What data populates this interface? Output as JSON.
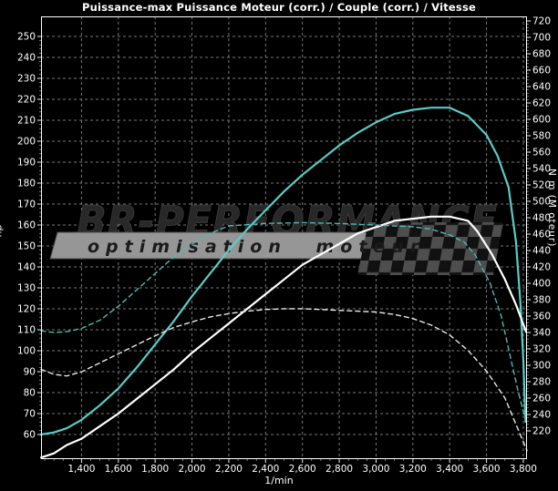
{
  "title": "Puissance-max Puissance Moteur (corr.) / Couple (corr.) / Vitesse",
  "watermark": {
    "brand": "BR-Performance",
    "tagline": "optimisation moteur"
  },
  "colors": {
    "background": "#000000",
    "tuned_curve": "#5accc5",
    "original_curve": "#ffffff",
    "grid": "#787878",
    "frame": "#ffffff",
    "banner_fill": "#969696",
    "banner_text": "#1b1b1b",
    "brand_fill": "#282828",
    "checker_dark": "#111111",
    "checker_light": "#4e4e4e"
  },
  "chart_data": {
    "type": "line",
    "title": "Puissance-max Puissance Moteur (corr.) / Couple (corr.) / Vitesse",
    "xlabel": "1/min",
    "ylabel_left": "hp",
    "ylabel_right": "N m (M oteur)",
    "x_range": [
      1180,
      3820
    ],
    "y_left_range": [
      60,
      250
    ],
    "y_right_range": [
      220,
      720
    ],
    "grid": true,
    "x_tick_values": [
      1400,
      1600,
      1800,
      2000,
      2200,
      2400,
      2600,
      2800,
      3000,
      3200,
      3400,
      3600,
      3800
    ],
    "x_tick_labels": [
      "1,400",
      "1,600",
      "1,800",
      "2,000",
      "2,200",
      "2,400",
      "2,600",
      "2,800",
      "3,000",
      "3,200",
      "3,400",
      "3,600",
      "3,800"
    ],
    "y_left_ticks": [
      60,
      70,
      80,
      90,
      100,
      110,
      120,
      130,
      140,
      150,
      160,
      170,
      180,
      190,
      200,
      210,
      220,
      230,
      240,
      250
    ],
    "y_right_ticks": [
      220,
      240,
      260,
      280,
      300,
      320,
      340,
      360,
      380,
      400,
      420,
      440,
      460,
      480,
      500,
      520,
      540,
      560,
      580,
      600,
      620,
      640,
      660,
      680,
      700,
      720
    ],
    "series": [
      {
        "name": "Puissance Moteur (corr.) — courbe cyan",
        "axis": "left",
        "unit": "hp",
        "color": "#5accc5",
        "style": "solid",
        "points": [
          [
            1180,
            60
          ],
          [
            1250,
            61
          ],
          [
            1320,
            63
          ],
          [
            1400,
            67
          ],
          [
            1500,
            74
          ],
          [
            1600,
            82
          ],
          [
            1700,
            92
          ],
          [
            1800,
            103
          ],
          [
            1900,
            114
          ],
          [
            2000,
            126
          ],
          [
            2100,
            137
          ],
          [
            2200,
            148
          ],
          [
            2300,
            158
          ],
          [
            2400,
            167
          ],
          [
            2500,
            176
          ],
          [
            2600,
            184
          ],
          [
            2700,
            191
          ],
          [
            2800,
            198
          ],
          [
            2900,
            204
          ],
          [
            3000,
            209
          ],
          [
            3100,
            213
          ],
          [
            3200,
            215
          ],
          [
            3300,
            216
          ],
          [
            3400,
            216
          ],
          [
            3500,
            212
          ],
          [
            3600,
            203
          ],
          [
            3660,
            193
          ],
          [
            3720,
            178
          ],
          [
            3760,
            152
          ],
          [
            3785,
            122
          ],
          [
            3800,
            95
          ],
          [
            3812,
            66
          ]
        ]
      },
      {
        "name": "Puissance Moteur (corr.) — courbe blanche",
        "axis": "left",
        "unit": "hp",
        "color": "#ffffff",
        "style": "solid",
        "points": [
          [
            1180,
            49
          ],
          [
            1250,
            51
          ],
          [
            1320,
            55
          ],
          [
            1400,
            58
          ],
          [
            1500,
            64
          ],
          [
            1600,
            70
          ],
          [
            1700,
            77
          ],
          [
            1800,
            84
          ],
          [
            1900,
            91
          ],
          [
            2000,
            99
          ],
          [
            2100,
            106
          ],
          [
            2200,
            113
          ],
          [
            2300,
            120
          ],
          [
            2400,
            127
          ],
          [
            2500,
            134
          ],
          [
            2600,
            141
          ],
          [
            2700,
            146
          ],
          [
            2800,
            151
          ],
          [
            2900,
            156
          ],
          [
            3000,
            159
          ],
          [
            3100,
            162
          ],
          [
            3200,
            163
          ],
          [
            3300,
            164
          ],
          [
            3400,
            164
          ],
          [
            3500,
            162
          ],
          [
            3550,
            157
          ],
          [
            3630,
            146
          ],
          [
            3700,
            134
          ],
          [
            3760,
            122
          ],
          [
            3815,
            109
          ]
        ]
      },
      {
        "name": "Couple (corr.) — courbe cyan",
        "axis": "right",
        "unit": "N m",
        "color": "#4fbab4",
        "style": "dashed",
        "points": [
          [
            1180,
            342
          ],
          [
            1250,
            340
          ],
          [
            1320,
            341
          ],
          [
            1400,
            345
          ],
          [
            1500,
            355
          ],
          [
            1600,
            372
          ],
          [
            1700,
            392
          ],
          [
            1800,
            412
          ],
          [
            1900,
            432
          ],
          [
            2000,
            448
          ],
          [
            2100,
            461
          ],
          [
            2200,
            470
          ],
          [
            2400,
            473
          ],
          [
            2600,
            474
          ],
          [
            2800,
            473
          ],
          [
            3000,
            471
          ],
          [
            3200,
            469
          ],
          [
            3300,
            466
          ],
          [
            3400,
            459
          ],
          [
            3480,
            450
          ],
          [
            3540,
            434
          ],
          [
            3620,
            400
          ],
          [
            3680,
            360
          ],
          [
            3720,
            320
          ],
          [
            3770,
            270
          ],
          [
            3810,
            235
          ]
        ]
      },
      {
        "name": "Couple (corr.) — courbe blanche",
        "axis": "right",
        "unit": "N m",
        "color": "#e9e9e9",
        "style": "dashed",
        "points": [
          [
            1180,
            295
          ],
          [
            1250,
            289
          ],
          [
            1320,
            287
          ],
          [
            1400,
            292
          ],
          [
            1500,
            303
          ],
          [
            1600,
            314
          ],
          [
            1700,
            325
          ],
          [
            1800,
            336
          ],
          [
            1900,
            346
          ],
          [
            2000,
            353
          ],
          [
            2100,
            359
          ],
          [
            2200,
            363
          ],
          [
            2300,
            366
          ],
          [
            2400,
            368
          ],
          [
            2500,
            369
          ],
          [
            2600,
            369
          ],
          [
            2700,
            368
          ],
          [
            2800,
            367
          ],
          [
            2900,
            366
          ],
          [
            3000,
            365
          ],
          [
            3100,
            362
          ],
          [
            3200,
            357
          ],
          [
            3300,
            349
          ],
          [
            3400,
            337
          ],
          [
            3500,
            318
          ],
          [
            3600,
            293
          ],
          [
            3700,
            260
          ],
          [
            3760,
            228
          ],
          [
            3820,
            196
          ]
        ]
      }
    ]
  }
}
